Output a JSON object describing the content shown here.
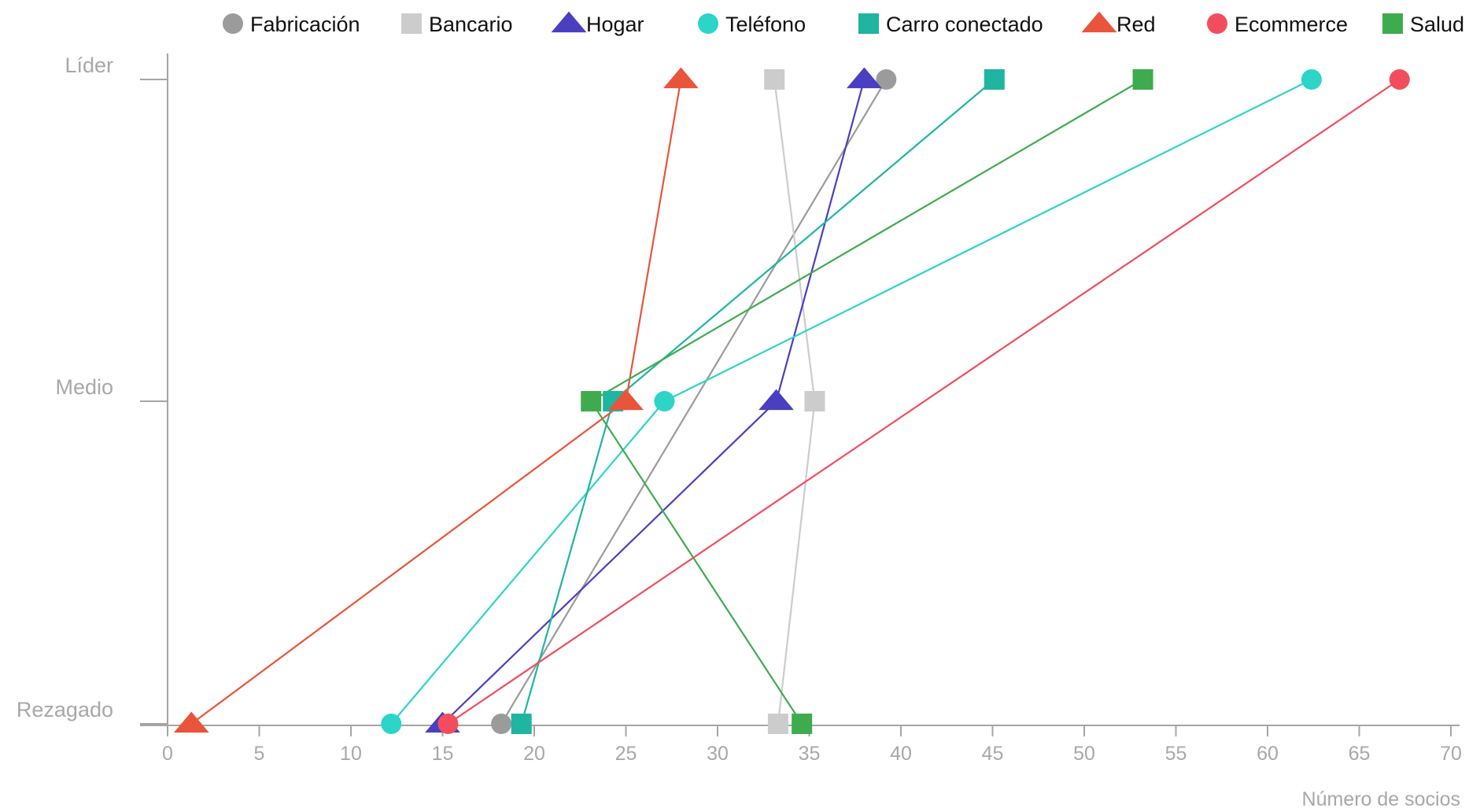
{
  "chart_data": {
    "type": "scatter",
    "title": "",
    "xlabel": "Número de socios",
    "ylabel": "",
    "xlim": [
      0,
      70
    ],
    "x_ticks": [
      0,
      5,
      10,
      15,
      20,
      25,
      30,
      35,
      40,
      45,
      50,
      55,
      60,
      65,
      70
    ],
    "y_categories": [
      "Rezagado",
      "Medio",
      "Líder"
    ],
    "grid": false,
    "legend_position": "top",
    "series": [
      {
        "name": "Fabricación",
        "marker": "circle",
        "color": "#9b9b9b",
        "points": [
          {
            "x": 18.2,
            "y": "Rezagado"
          },
          {
            "x": 39.2,
            "y": "Líder"
          }
        ]
      },
      {
        "name": "Bancario",
        "marker": "square",
        "color": "#cccccc",
        "points": [
          {
            "x": 33.3,
            "y": "Rezagado"
          },
          {
            "x": 35.3,
            "y": "Medio"
          },
          {
            "x": 33.1,
            "y": "Líder"
          }
        ]
      },
      {
        "name": "Hogar",
        "marker": "triangle",
        "color": "#4a3fc0",
        "points": [
          {
            "x": 15.0,
            "y": "Rezagado"
          },
          {
            "x": 33.2,
            "y": "Medio"
          },
          {
            "x": 38.0,
            "y": "Líder"
          }
        ]
      },
      {
        "name": "Teléfono",
        "marker": "circle",
        "color": "#2dd4c8",
        "points": [
          {
            "x": 12.2,
            "y": "Rezagado"
          },
          {
            "x": 27.1,
            "y": "Medio"
          },
          {
            "x": 62.4,
            "y": "Líder"
          }
        ]
      },
      {
        "name": "Carro conectado",
        "marker": "square",
        "color": "#1fb5a0",
        "points": [
          {
            "x": 19.3,
            "y": "Rezagado"
          },
          {
            "x": 24.3,
            "y": "Medio"
          },
          {
            "x": 45.1,
            "y": "Líder"
          }
        ]
      },
      {
        "name": "Red",
        "marker": "triangle",
        "color": "#e8553a",
        "points": [
          {
            "x": 1.3,
            "y": "Rezagado"
          },
          {
            "x": 25.0,
            "y": "Medio"
          },
          {
            "x": 28.0,
            "y": "Líder"
          }
        ]
      },
      {
        "name": "Ecommerce",
        "marker": "circle",
        "color": "#f24d5e",
        "points": [
          {
            "x": 15.3,
            "y": "Rezagado"
          },
          {
            "x": 67.2,
            "y": "Líder"
          }
        ]
      },
      {
        "name": "Salud",
        "marker": "square",
        "color": "#3fab4f",
        "points": [
          {
            "x": 34.6,
            "y": "Rezagado"
          },
          {
            "x": 23.1,
            "y": "Medio"
          },
          {
            "x": 53.2,
            "y": "Líder"
          }
        ]
      }
    ]
  }
}
